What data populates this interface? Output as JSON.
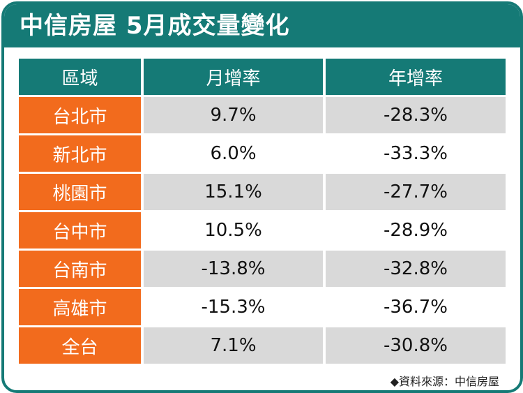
{
  "header": {
    "title": "中信房屋 5月成交量變化"
  },
  "table": {
    "columns": [
      "區域",
      "月增率",
      "年增率"
    ],
    "rows": [
      [
        "台北市",
        "9.7%",
        "-28.3%"
      ],
      [
        "新北市",
        "6.0%",
        "-33.3%"
      ],
      [
        "桃園市",
        "15.1%",
        "-27.7%"
      ],
      [
        "台中市",
        "10.5%",
        "-28.9%"
      ],
      [
        "台南市",
        "-13.8%",
        "-32.8%"
      ],
      [
        "高雄市",
        "-15.3%",
        "-36.7%"
      ],
      [
        "全台",
        "7.1%",
        "-30.8%"
      ]
    ]
  },
  "source": "◆資料來源：中信房屋"
}
